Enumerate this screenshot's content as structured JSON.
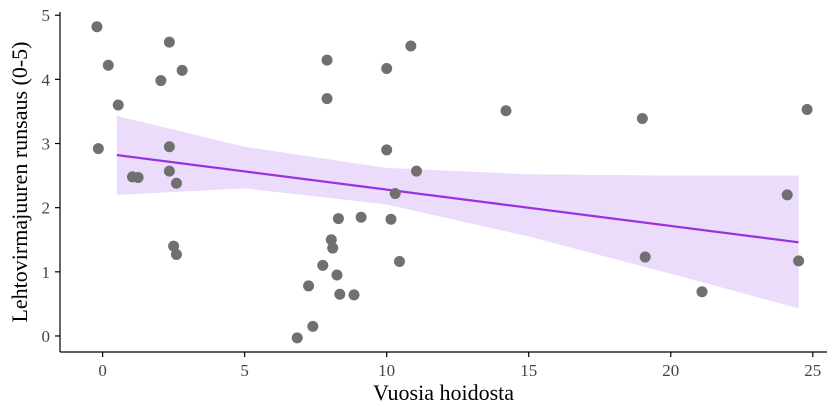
{
  "chart_data": {
    "type": "scatter",
    "title": "",
    "xlabel": "Vuosia hoidosta",
    "ylabel": "Lehtovirmajuuren runsaus (0-5)",
    "xlim": [
      -1.5,
      25.5
    ],
    "ylim": [
      -0.25,
      5.05
    ],
    "xticks": [
      0,
      5,
      10,
      15,
      20,
      25
    ],
    "yticks": [
      0,
      1,
      2,
      3,
      4,
      5
    ],
    "grid": false,
    "colors": {
      "points": "#707070",
      "trend_line": "#9b30e0",
      "confidence_band": "#ecdcfb",
      "axis": "#000000"
    },
    "points": [
      {
        "x": -0.2,
        "y": 4.82
      },
      {
        "x": 0.2,
        "y": 4.22
      },
      {
        "x": 0.55,
        "y": 3.6
      },
      {
        "x": -0.15,
        "y": 2.92
      },
      {
        "x": 1.05,
        "y": 2.48
      },
      {
        "x": 1.25,
        "y": 2.47
      },
      {
        "x": 2.05,
        "y": 3.98
      },
      {
        "x": 2.35,
        "y": 4.58
      },
      {
        "x": 2.8,
        "y": 4.14
      },
      {
        "x": 2.35,
        "y": 2.95
      },
      {
        "x": 2.35,
        "y": 2.57
      },
      {
        "x": 2.6,
        "y": 2.38
      },
      {
        "x": 2.5,
        "y": 1.4
      },
      {
        "x": 2.6,
        "y": 1.27
      },
      {
        "x": 6.85,
        "y": -0.03
      },
      {
        "x": 7.25,
        "y": 0.78
      },
      {
        "x": 7.4,
        "y": 0.15
      },
      {
        "x": 7.75,
        "y": 1.1
      },
      {
        "x": 7.9,
        "y": 4.3
      },
      {
        "x": 7.9,
        "y": 3.7
      },
      {
        "x": 8.05,
        "y": 1.5
      },
      {
        "x": 8.1,
        "y": 1.37
      },
      {
        "x": 8.25,
        "y": 0.95
      },
      {
        "x": 8.3,
        "y": 1.83
      },
      {
        "x": 8.35,
        "y": 0.65
      },
      {
        "x": 8.85,
        "y": 0.64
      },
      {
        "x": 9.1,
        "y": 1.85
      },
      {
        "x": 10.0,
        "y": 4.17
      },
      {
        "x": 10.0,
        "y": 2.9
      },
      {
        "x": 10.15,
        "y": 1.82
      },
      {
        "x": 10.3,
        "y": 2.22
      },
      {
        "x": 10.45,
        "y": 1.16
      },
      {
        "x": 10.85,
        "y": 4.52
      },
      {
        "x": 11.05,
        "y": 2.57
      },
      {
        "x": 14.2,
        "y": 3.51
      },
      {
        "x": 19.0,
        "y": 3.39
      },
      {
        "x": 19.1,
        "y": 1.23
      },
      {
        "x": 21.1,
        "y": 0.69
      },
      {
        "x": 24.1,
        "y": 2.2
      },
      {
        "x": 24.5,
        "y": 1.17
      },
      {
        "x": 24.8,
        "y": 3.53
      }
    ],
    "trend_line": {
      "x_start": 0.5,
      "y_start": 2.82,
      "x_end": 24.5,
      "y_end": 1.46
    },
    "confidence_band": {
      "x": [
        0.5,
        5,
        10,
        15,
        20,
        24.5
      ],
      "upper": [
        3.43,
        2.95,
        2.62,
        2.52,
        2.5,
        2.5
      ],
      "lower": [
        2.2,
        2.3,
        2.05,
        1.55,
        0.97,
        0.43
      ]
    }
  }
}
